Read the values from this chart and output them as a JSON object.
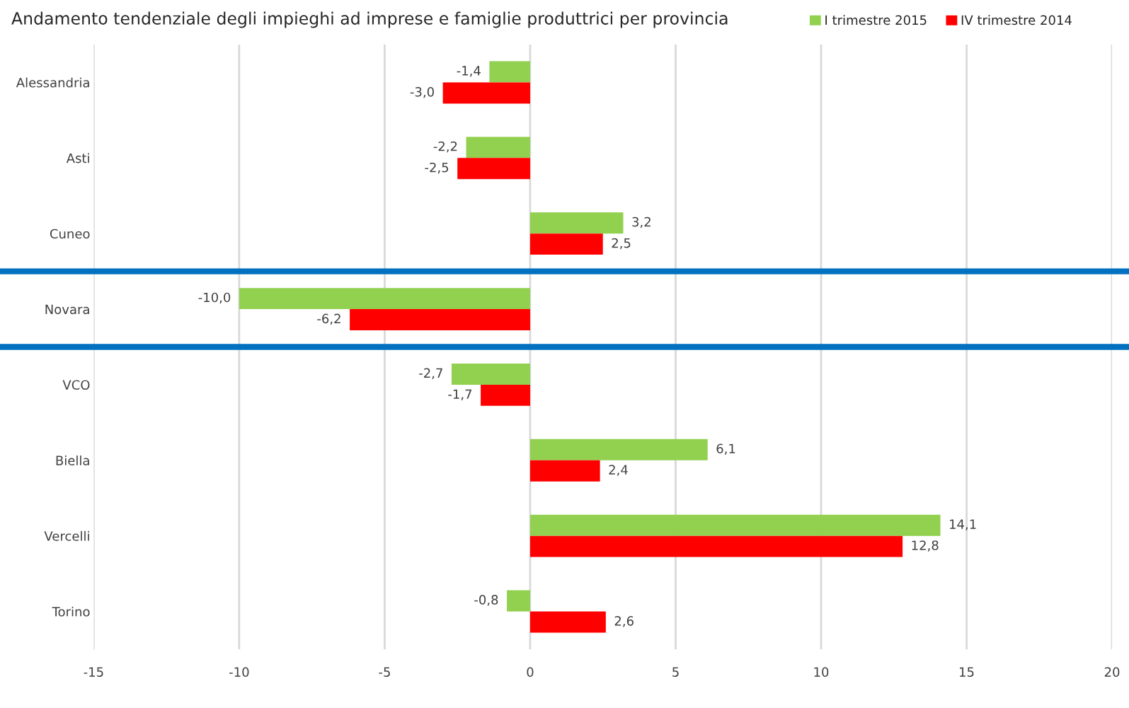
{
  "chart_data": {
    "type": "bar",
    "orientation": "horizontal",
    "title": "Andamento tendenziale degli impieghi ad imprese e famiglie produttrici per provincia",
    "categories": [
      "Alessandria",
      "Asti",
      "Cuneo",
      "Novara",
      "VCO",
      "Biella",
      "Vercelli",
      "Torino"
    ],
    "series": [
      {
        "name": "I trimestre 2015",
        "color": "#92d050",
        "values": [
          -1.4,
          -2.2,
          3.2,
          -10.0,
          -2.7,
          6.1,
          14.1,
          -0.8
        ],
        "value_labels": [
          "-1,4",
          "-2,2",
          "3,2",
          "-10,0",
          "-2,7",
          "6,1",
          "14,1",
          "-0,8"
        ]
      },
      {
        "name": "IV trimestre 2014",
        "color": "#ff0000",
        "values": [
          -3.0,
          -2.5,
          2.5,
          -6.2,
          -1.7,
          2.4,
          12.8,
          2.6
        ],
        "value_labels": [
          "-3,0",
          "-2,5",
          "2,5",
          "-6,2",
          "-1,7",
          "2,4",
          "12,8",
          "2,6"
        ]
      }
    ],
    "xlim": [
      -15,
      20
    ],
    "xticks": [
      -15,
      -10,
      -5,
      0,
      5,
      10,
      15,
      20
    ],
    "grid": "x",
    "legend": "top right"
  }
}
